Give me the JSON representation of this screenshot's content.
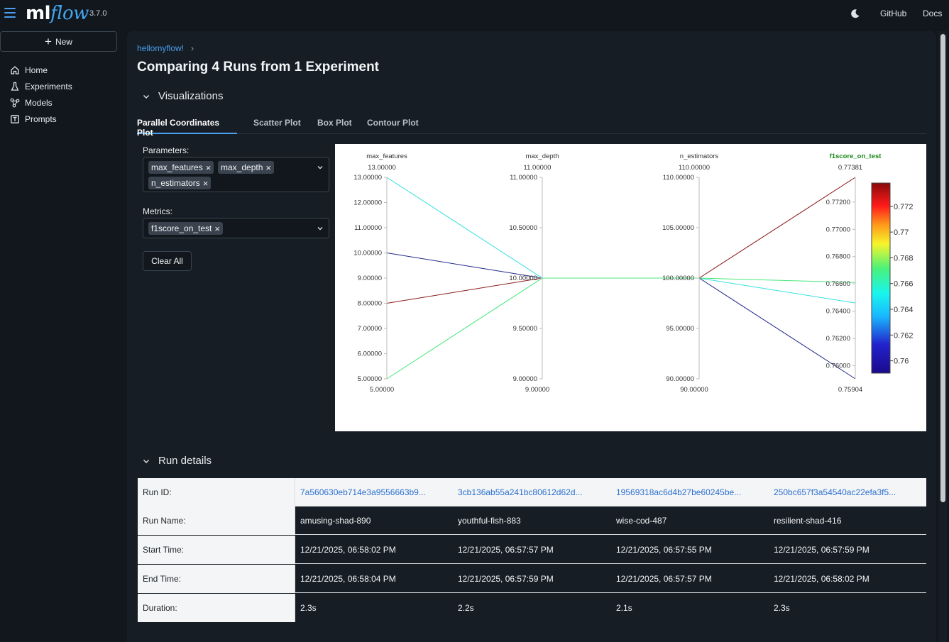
{
  "app": {
    "logo_ml": "ml",
    "logo_flow": "flow",
    "version": "3.7.0",
    "github": "GitHub",
    "docs": "Docs"
  },
  "sidebar": {
    "new_label": "New",
    "items": [
      {
        "label": "Home",
        "icon": "home-icon"
      },
      {
        "label": "Experiments",
        "icon": "flask-icon"
      },
      {
        "label": "Models",
        "icon": "models-icon"
      },
      {
        "label": "Prompts",
        "icon": "prompts-icon"
      }
    ]
  },
  "breadcrumb": {
    "experiment": "hellomyflow!",
    "sep": "›"
  },
  "page_title": "Comparing 4 Runs from 1 Experiment",
  "visualizations": {
    "heading": "Visualizations",
    "tabs": [
      "Parallel Coordinates Plot",
      "Scatter Plot",
      "Box Plot",
      "Contour Plot"
    ],
    "parameters_label": "Parameters:",
    "parameters": [
      "max_features",
      "max_depth",
      "n_estimators"
    ],
    "metrics_label": "Metrics:",
    "metrics": [
      "f1score_on_test"
    ],
    "clear_all": "Clear All"
  },
  "chart_data": {
    "type": "parallel_coordinates",
    "dimensions": [
      {
        "name": "max_features",
        "range": [
          5,
          13
        ],
        "ticks": [
          "13.00000",
          "12.00000",
          "11.00000",
          "10.00000",
          "9.00000",
          "8.00000",
          "7.00000",
          "6.00000",
          "5.00000"
        ],
        "top": "13.00000",
        "bottom": "5.00000",
        "tick_values": [
          13,
          12,
          11,
          10,
          9,
          8,
          7,
          6,
          5
        ]
      },
      {
        "name": "max_depth",
        "range": [
          9,
          11
        ],
        "ticks": [
          "11.00000",
          "10.50000",
          "10.00000",
          "9.50000",
          "9.00000"
        ],
        "top": "11.00000",
        "bottom": "9.00000",
        "tick_values": [
          11,
          10.5,
          10,
          9.5,
          9
        ]
      },
      {
        "name": "n_estimators",
        "range": [
          90,
          110
        ],
        "ticks": [
          "110.00000",
          "105.00000",
          "100.00000",
          "95.00000",
          "90.00000"
        ],
        "top": "110.00000",
        "bottom": "90.00000",
        "tick_values": [
          110,
          105,
          100,
          95,
          90
        ]
      },
      {
        "name": "f1score_on_test",
        "range": [
          0.75904,
          0.77381
        ],
        "ticks": [
          "0.77200",
          "0.77000",
          "0.76800",
          "0.76600",
          "0.76400",
          "0.76200",
          "0.76000"
        ],
        "top": "0.77381",
        "bottom": "0.75904",
        "tick_values": [
          0.772,
          0.77,
          0.768,
          0.766,
          0.764,
          0.762,
          0.76
        ]
      }
    ],
    "runs": [
      {
        "values": [
          13,
          10,
          100,
          0.7646
        ],
        "color": "#36e0e0"
      },
      {
        "values": [
          10,
          10,
          100,
          0.75904
        ],
        "color": "#232a8a"
      },
      {
        "values": [
          8,
          10,
          100,
          0.77381
        ],
        "color": "#8c1a1a"
      },
      {
        "values": [
          5,
          10,
          100,
          0.7661
        ],
        "color": "#45e87a"
      }
    ],
    "colorbar": {
      "labels": [
        "0.772",
        "0.77",
        "0.768",
        "0.766",
        "0.764",
        "0.762",
        "0.76"
      ],
      "values": [
        0.772,
        0.77,
        0.768,
        0.766,
        0.764,
        0.762,
        0.76
      ],
      "range": [
        0.75904,
        0.77381
      ]
    }
  },
  "run_details": {
    "heading": "Run details",
    "rows": [
      {
        "label": "Run ID:",
        "values": [
          "7a560630eb714e3a9556663b9...",
          "3cb136ab55a241bc80612d62d...",
          "19569318ac6d4b27be60245be...",
          "250bc657f3a54540ac22efa3f5..."
        ]
      },
      {
        "label": "Run Name:",
        "values": [
          "amusing-shad-890",
          "youthful-fish-883",
          "wise-cod-487",
          "resilient-shad-416"
        ]
      },
      {
        "label": "Start Time:",
        "values": [
          "12/21/2025, 06:58:02 PM",
          "12/21/2025, 06:57:57 PM",
          "12/21/2025, 06:57:55 PM",
          "12/21/2025, 06:57:59 PM"
        ]
      },
      {
        "label": "End Time:",
        "values": [
          "12/21/2025, 06:58:04 PM",
          "12/21/2025, 06:57:59 PM",
          "12/21/2025, 06:57:57 PM",
          "12/21/2025, 06:58:02 PM"
        ]
      },
      {
        "label": "Duration:",
        "values": [
          "2.3s",
          "2.2s",
          "2.1s",
          "2.3s"
        ]
      }
    ]
  }
}
